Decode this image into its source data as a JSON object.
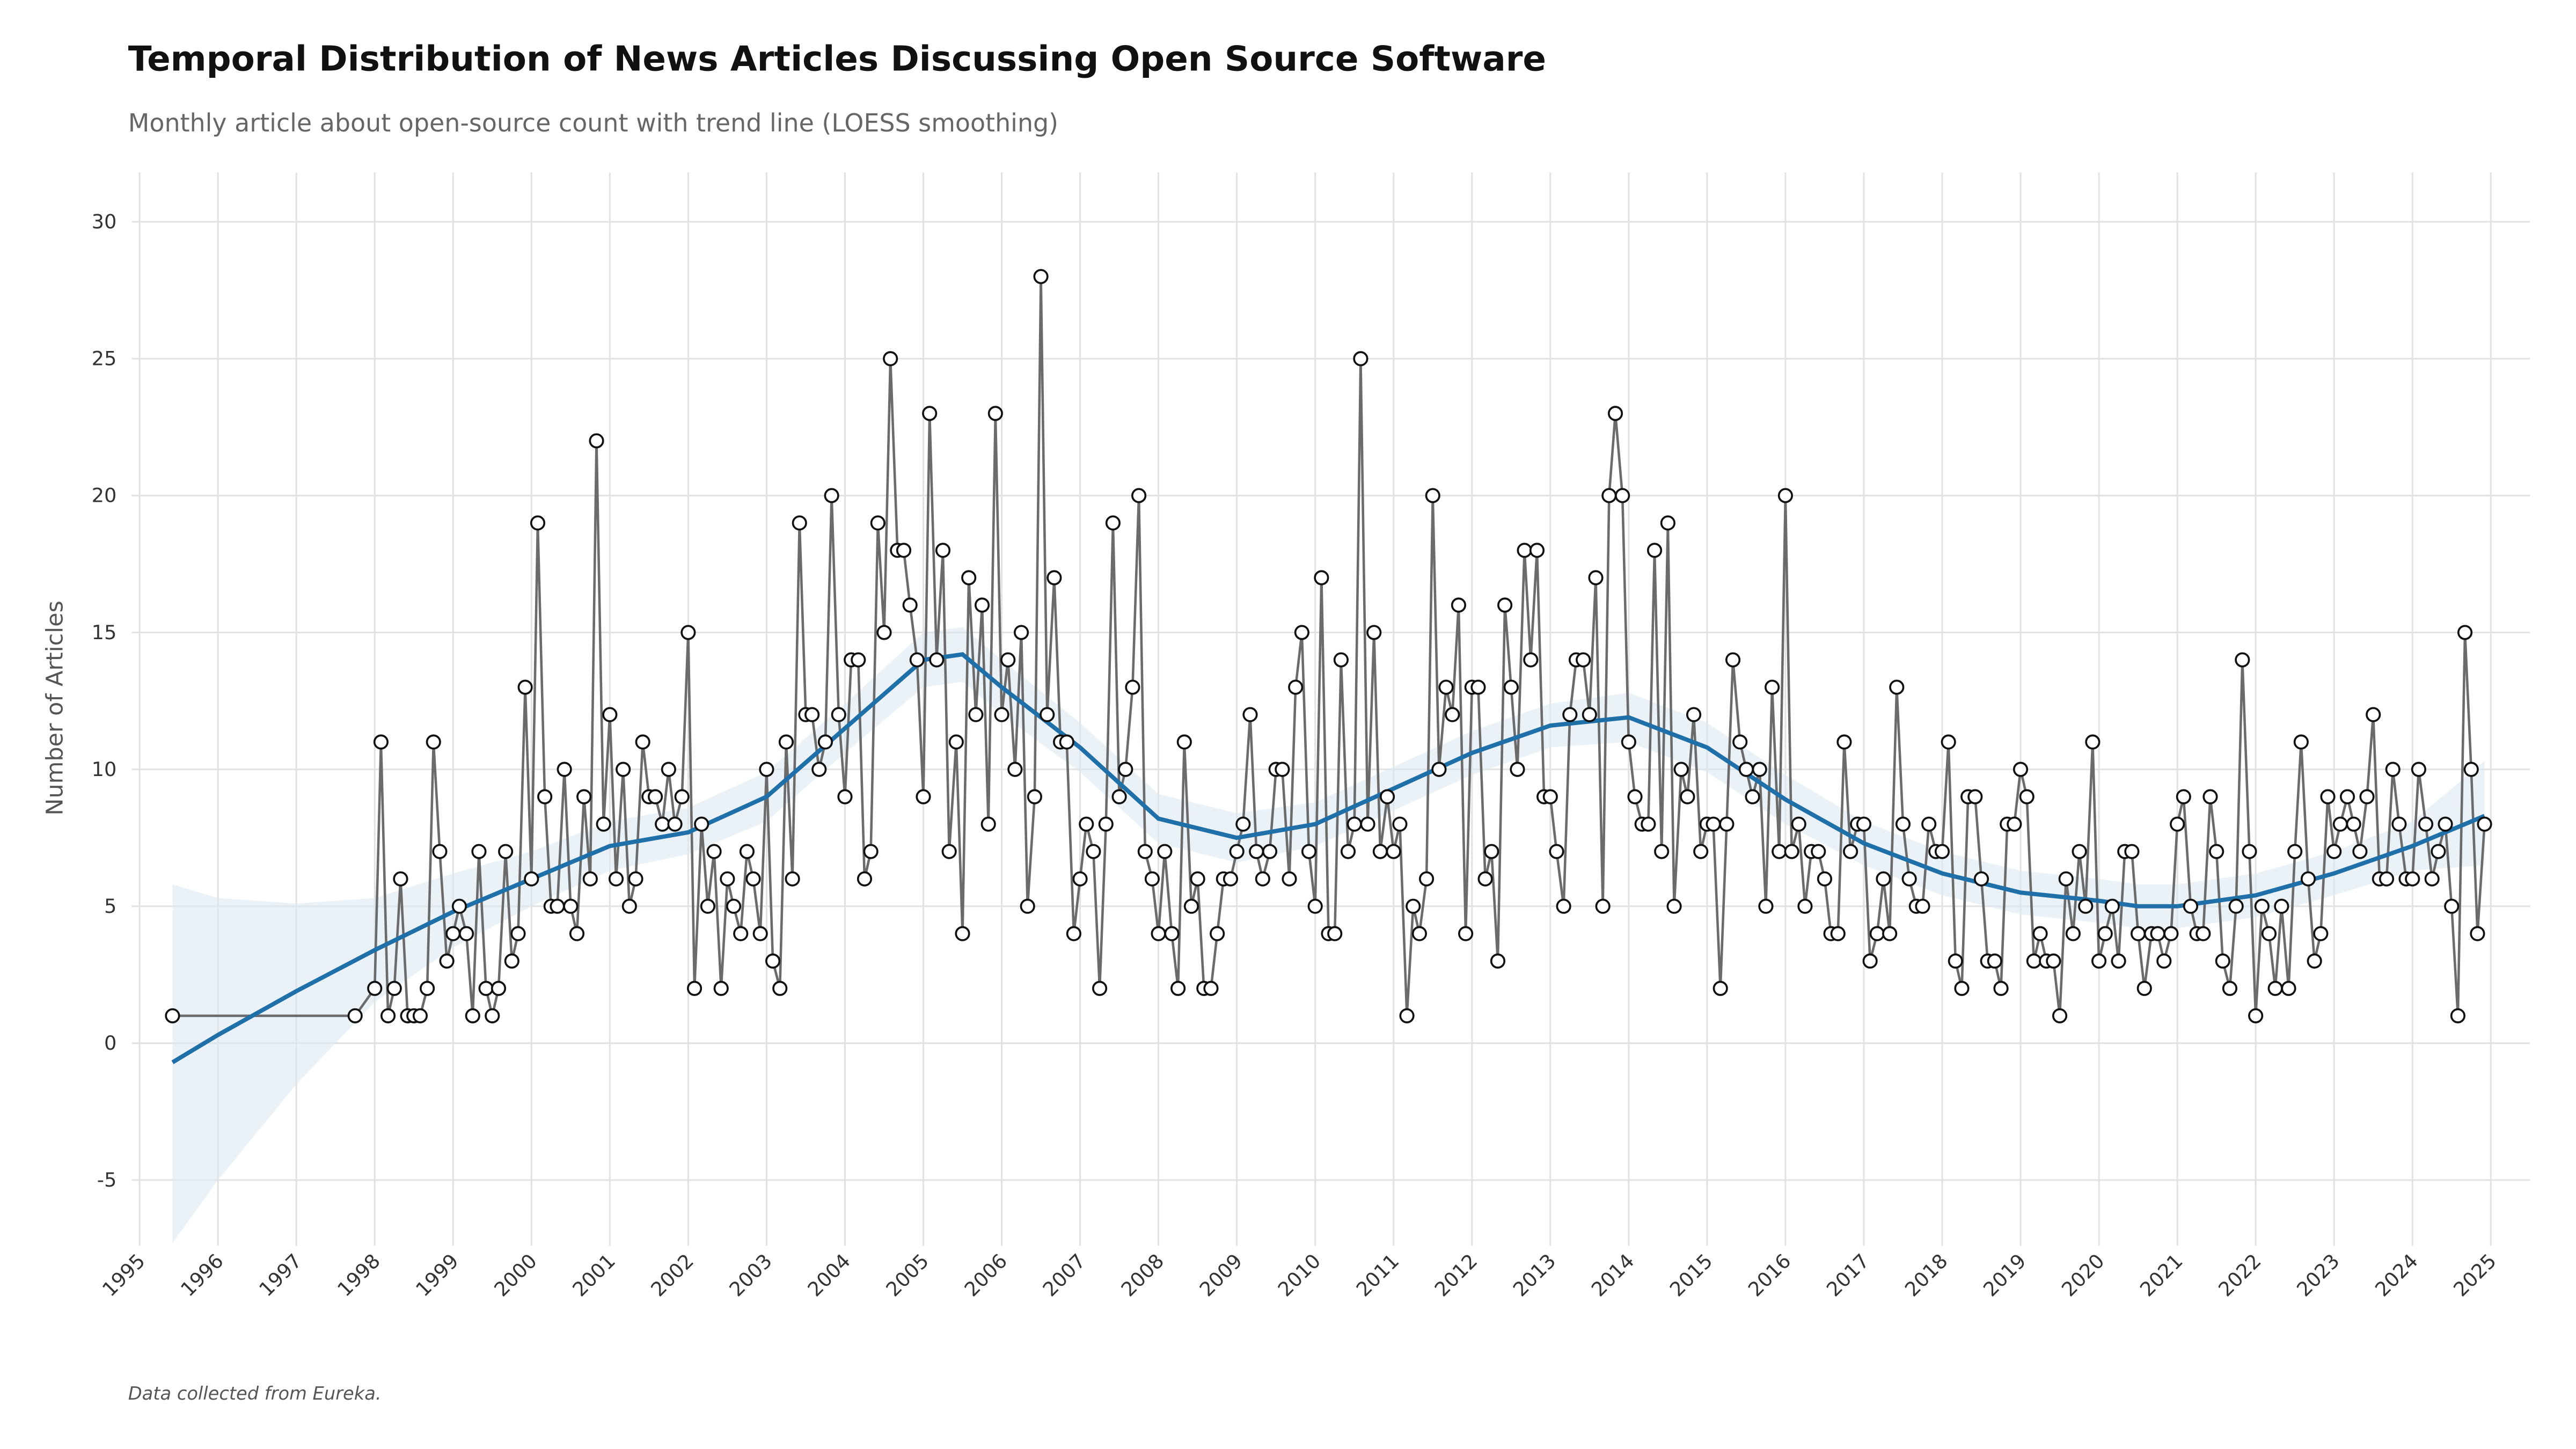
{
  "chart_data": {
    "type": "line",
    "title": "Temporal Distribution of News Articles Discussing Open Source Software",
    "subtitle": "Monthly article about open-source count with trend line (LOESS smoothing)",
    "y_label": "Number of Articles",
    "caption": "Data collected from Eureka.",
    "color": "#6b6b6b",
    "grid": true,
    "xlim": [
      1994.9,
      2025.5
    ],
    "xticks": [
      1995,
      1996,
      1997,
      1998,
      1999,
      2000,
      2001,
      2002,
      2003,
      2004,
      2005,
      2006,
      2007,
      2008,
      2009,
      2010,
      2011,
      2012,
      2013,
      2014,
      2015,
      2016,
      2017,
      2018,
      2019,
      2020,
      2021,
      2022,
      2023,
      2024,
      2025
    ],
    "ylim": [
      -7.4,
      31.8
    ],
    "yticks": [
      -5,
      0,
      5,
      10,
      15,
      20,
      25,
      30
    ],
    "x": [
      1995.42,
      1997.75,
      1998.0,
      1998.08,
      1998.17,
      1998.25,
      1998.33,
      1998.42,
      1998.5,
      1998.58,
      1998.67,
      1998.75,
      1998.83,
      1998.92,
      1999.0,
      1999.08,
      1999.17,
      1999.25,
      1999.33,
      1999.42,
      1999.5,
      1999.58,
      1999.67,
      1999.75,
      1999.83,
      1999.92,
      2000.0,
      2000.08,
      2000.17,
      2000.25,
      2000.33,
      2000.42,
      2000.5,
      2000.58,
      2000.67,
      2000.75,
      2000.83,
      2000.92,
      2001.0,
      2001.08,
      2001.17,
      2001.25,
      2001.33,
      2001.42,
      2001.5,
      2001.58,
      2001.67,
      2001.75,
      2001.83,
      2001.92,
      2002.0,
      2002.08,
      2002.17,
      2002.25,
      2002.33,
      2002.42,
      2002.5,
      2002.58,
      2002.67,
      2002.75,
      2002.83,
      2002.92,
      2003.0,
      2003.08,
      2003.17,
      2003.25,
      2003.33,
      2003.42,
      2003.5,
      2003.58,
      2003.67,
      2003.75,
      2003.83,
      2003.92,
      2004.0,
      2004.08,
      2004.17,
      2004.25,
      2004.33,
      2004.42,
      2004.5,
      2004.58,
      2004.67,
      2004.75,
      2004.83,
      2004.92,
      2005.0,
      2005.08,
      2005.17,
      2005.25,
      2005.33,
      2005.42,
      2005.5,
      2005.58,
      2005.67,
      2005.75,
      2005.83,
      2005.92,
      2006.0,
      2006.08,
      2006.17,
      2006.25,
      2006.33,
      2006.42,
      2006.5,
      2006.58,
      2006.67,
      2006.75,
      2006.83,
      2006.92,
      2007.0,
      2007.08,
      2007.17,
      2007.25,
      2007.33,
      2007.42,
      2007.5,
      2007.58,
      2007.67,
      2007.75,
      2007.83,
      2007.92,
      2008.0,
      2008.08,
      2008.17,
      2008.25,
      2008.33,
      2008.42,
      2008.5,
      2008.58,
      2008.67,
      2008.75,
      2008.83,
      2008.92,
      2009.0,
      2009.08,
      2009.17,
      2009.25,
      2009.33,
      2009.42,
      2009.5,
      2009.58,
      2009.67,
      2009.75,
      2009.83,
      2009.92,
      2010.0,
      2010.08,
      2010.17,
      2010.25,
      2010.33,
      2010.42,
      2010.5,
      2010.58,
      2010.67,
      2010.75,
      2010.83,
      2010.92,
      2011.0,
      2011.08,
      2011.17,
      2011.25,
      2011.33,
      2011.42,
      2011.5,
      2011.58,
      2011.67,
      2011.75,
      2011.83,
      2011.92,
      2012.0,
      2012.08,
      2012.17,
      2012.25,
      2012.33,
      2012.42,
      2012.5,
      2012.58,
      2012.67,
      2012.75,
      2012.83,
      2012.92,
      2013.0,
      2013.08,
      2013.17,
      2013.25,
      2013.33,
      2013.42,
      2013.5,
      2013.58,
      2013.67,
      2013.75,
      2013.83,
      2013.92,
      2014.0,
      2014.08,
      2014.17,
      2014.25,
      2014.33,
      2014.42,
      2014.5,
      2014.58,
      2014.67,
      2014.75,
      2014.83,
      2014.92,
      2015.0,
      2015.08,
      2015.17,
      2015.25,
      2015.33,
      2015.42,
      2015.5,
      2015.58,
      2015.67,
      2015.75,
      2015.83,
      2015.92,
      2016.0,
      2016.08,
      2016.17,
      2016.25,
      2016.33,
      2016.42,
      2016.5,
      2016.58,
      2016.67,
      2016.75,
      2016.83,
      2016.92,
      2017.0,
      2017.08,
      2017.17,
      2017.25,
      2017.33,
      2017.42,
      2017.5,
      2017.58,
      2017.67,
      2017.75,
      2017.83,
      2017.92,
      2018.0,
      2018.08,
      2018.17,
      2018.25,
      2018.33,
      2018.42,
      2018.5,
      2018.58,
      2018.67,
      2018.75,
      2018.83,
      2018.92,
      2019.0,
      2019.08,
      2019.17,
      2019.25,
      2019.33,
      2019.42,
      2019.5,
      2019.58,
      2019.67,
      2019.75,
      2019.83,
      2019.92,
      2020.0,
      2020.08,
      2020.17,
      2020.25,
      2020.33,
      2020.42,
      2020.5,
      2020.58,
      2020.67,
      2020.75,
      2020.83,
      2020.92,
      2021.0,
      2021.08,
      2021.17,
      2021.25,
      2021.33,
      2021.42,
      2021.5,
      2021.58,
      2021.67,
      2021.75,
      2021.83,
      2021.92,
      2022.0,
      2022.08,
      2022.17,
      2022.25,
      2022.33,
      2022.42,
      2022.5,
      2022.58,
      2022.67,
      2022.75,
      2022.83,
      2022.92,
      2023.0,
      2023.08,
      2023.17,
      2023.25,
      2023.33,
      2023.42,
      2023.5,
      2023.58,
      2023.67,
      2023.75,
      2023.83,
      2023.92,
      2024.0,
      2024.08,
      2024.17,
      2024.25,
      2024.33,
      2024.42,
      2024.5,
      2024.58,
      2024.67,
      2024.75,
      2024.83,
      2024.92
    ],
    "values": [
      1,
      1,
      2,
      11,
      1,
      2,
      6,
      1,
      1,
      1,
      2,
      11,
      7,
      3,
      4,
      5,
      4,
      1,
      7,
      2,
      1,
      2,
      7,
      3,
      4,
      13,
      6,
      19,
      9,
      5,
      5,
      10,
      5,
      4,
      9,
      6,
      22,
      8,
      12,
      6,
      10,
      5,
      6,
      11,
      9,
      9,
      8,
      10,
      8,
      9,
      15,
      2,
      8,
      5,
      7,
      2,
      6,
      5,
      4,
      7,
      6,
      4,
      10,
      3,
      2,
      11,
      6,
      19,
      12,
      12,
      10,
      11,
      20,
      12,
      9,
      14,
      14,
      6,
      7,
      19,
      15,
      25,
      18,
      18,
      16,
      14,
      9,
      23,
      14,
      18,
      7,
      11,
      4,
      17,
      12,
      16,
      8,
      23,
      12,
      14,
      10,
      15,
      5,
      9,
      28,
      12,
      17,
      11,
      11,
      4,
      6,
      8,
      7,
      2,
      8,
      19,
      9,
      10,
      13,
      20,
      7,
      6,
      4,
      7,
      4,
      2,
      11,
      5,
      6,
      2,
      2,
      4,
      6,
      6,
      7,
      8,
      12,
      7,
      6,
      7,
      10,
      10,
      6,
      13,
      15,
      7,
      5,
      17,
      4,
      4,
      14,
      7,
      8,
      25,
      8,
      15,
      7,
      9,
      7,
      8,
      1,
      5,
      4,
      6,
      20,
      10,
      13,
      12,
      16,
      4,
      13,
      13,
      6,
      7,
      3,
      16,
      13,
      10,
      18,
      14,
      18,
      9,
      9,
      7,
      5,
      12,
      14,
      14,
      12,
      17,
      5,
      20,
      23,
      20,
      11,
      9,
      8,
      8,
      18,
      7,
      19,
      5,
      10,
      9,
      12,
      7,
      8,
      8,
      2,
      8,
      14,
      11,
      10,
      9,
      10,
      5,
      13,
      7,
      20,
      7,
      8,
      5,
      7,
      7,
      6,
      4,
      4,
      11,
      7,
      8,
      8,
      3,
      4,
      6,
      4,
      13,
      8,
      6,
      5,
      5,
      8,
      7,
      7,
      11,
      3,
      2,
      9,
      9,
      6,
      3,
      3,
      2,
      8,
      8,
      10,
      9,
      3,
      4,
      3,
      3,
      1,
      6,
      4,
      7,
      5,
      11,
      3,
      4,
      5,
      3,
      7,
      7,
      4,
      2,
      4,
      4,
      3,
      4,
      8,
      9,
      5,
      4,
      4,
      9,
      7,
      3,
      2,
      5,
      14,
      7,
      1,
      5,
      4,
      2,
      5,
      2,
      7,
      11,
      6,
      3,
      4,
      9,
      7,
      8,
      9,
      8,
      7,
      9,
      12,
      6,
      6,
      10,
      8,
      6,
      6,
      10,
      8,
      6,
      7,
      8,
      5,
      1,
      15,
      10,
      4,
      8
    ],
    "trend": {
      "color": "#1f6fa8",
      "band_color": "#dceaf3",
      "x": [
        1995.42,
        1996,
        1997,
        1998,
        1999,
        2000,
        2001,
        2002,
        2003,
        2004,
        2005,
        2005.5,
        2006,
        2007,
        2008,
        2009,
        2010,
        2011,
        2012,
        2013,
        2014,
        2015,
        2016,
        2017,
        2018,
        2019,
        2020,
        2020.5,
        2021,
        2022,
        2023,
        2024,
        2024.92
      ],
      "values": [
        -0.7,
        0.3,
        1.9,
        3.4,
        4.8,
        6.0,
        7.2,
        7.7,
        9.0,
        11.5,
        14.0,
        14.2,
        13.0,
        10.8,
        8.2,
        7.5,
        8.0,
        9.3,
        10.6,
        11.6,
        11.9,
        10.8,
        8.9,
        7.3,
        6.2,
        5.5,
        5.2,
        5.0,
        5.0,
        5.4,
        6.2,
        7.2,
        8.3
      ],
      "lower": [
        -7.3,
        -5,
        -1.5,
        1.5,
        3.5,
        5.0,
        6.3,
        6.9,
        8.1,
        10.6,
        13.0,
        13.2,
        12.0,
        9.9,
        7.3,
        6.6,
        7.2,
        8.5,
        9.8,
        10.8,
        11.0,
        9.9,
        8.0,
        6.5,
        5.4,
        4.7,
        4.4,
        4.2,
        4.2,
        4.6,
        5.4,
        6.3,
        6.5
      ],
      "upper": [
        5.8,
        5.3,
        5.1,
        5.3,
        6.2,
        7.0,
        8.1,
        8.6,
        9.9,
        12.4,
        15.0,
        15.2,
        14.0,
        11.7,
        9.1,
        8.4,
        8.8,
        10.1,
        11.4,
        12.4,
        12.8,
        11.7,
        9.8,
        8.1,
        7.0,
        6.3,
        6.0,
        5.8,
        5.8,
        6.2,
        7.0,
        8.1,
        10.3
      ]
    }
  }
}
